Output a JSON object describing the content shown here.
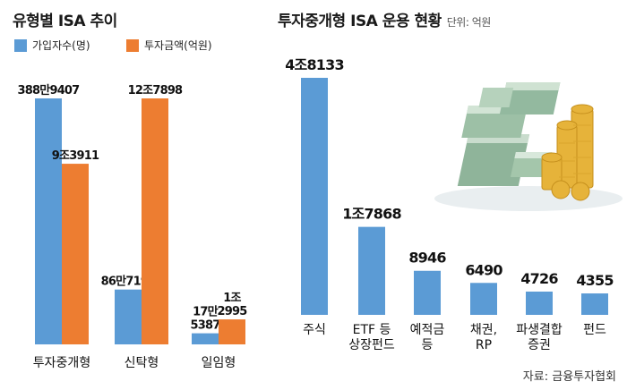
{
  "chart_data": [
    {
      "type": "bar",
      "title": "유형별 ISA 추이",
      "categories": [
        "투자중개형",
        "신탁형",
        "일임형"
      ],
      "series": [
        {
          "name": "가입자수(명)",
          "color": "#5b9bd5",
          "values": [
            3889407,
            867190,
            175387
          ],
          "labels": [
            "388만9407",
            "86만7190",
            "17만\n5387"
          ]
        },
        {
          "name": "투자금액(억원)",
          "color": "#ed7d31",
          "values": [
            93911,
            127898,
            12995
          ],
          "labels": [
            "9조3911",
            "12조7898",
            "1조\n2995"
          ]
        }
      ]
    },
    {
      "type": "bar",
      "title": "투자중개형 ISA 운용 현황",
      "unit": "단위: 억원",
      "categories": [
        "주식",
        "ETF 등\n상장펀드",
        "예적금\n등",
        "채권,\nRP",
        "파생결합\n증권",
        "펀드"
      ],
      "values": [
        48133,
        17868,
        8946,
        6490,
        4726,
        4355
      ],
      "labels": [
        "4조8133",
        "1조7868",
        "8946",
        "6490",
        "4726",
        "4355"
      ],
      "color": "#5b9bd5"
    }
  ],
  "source": "자료: 금융투자협회"
}
